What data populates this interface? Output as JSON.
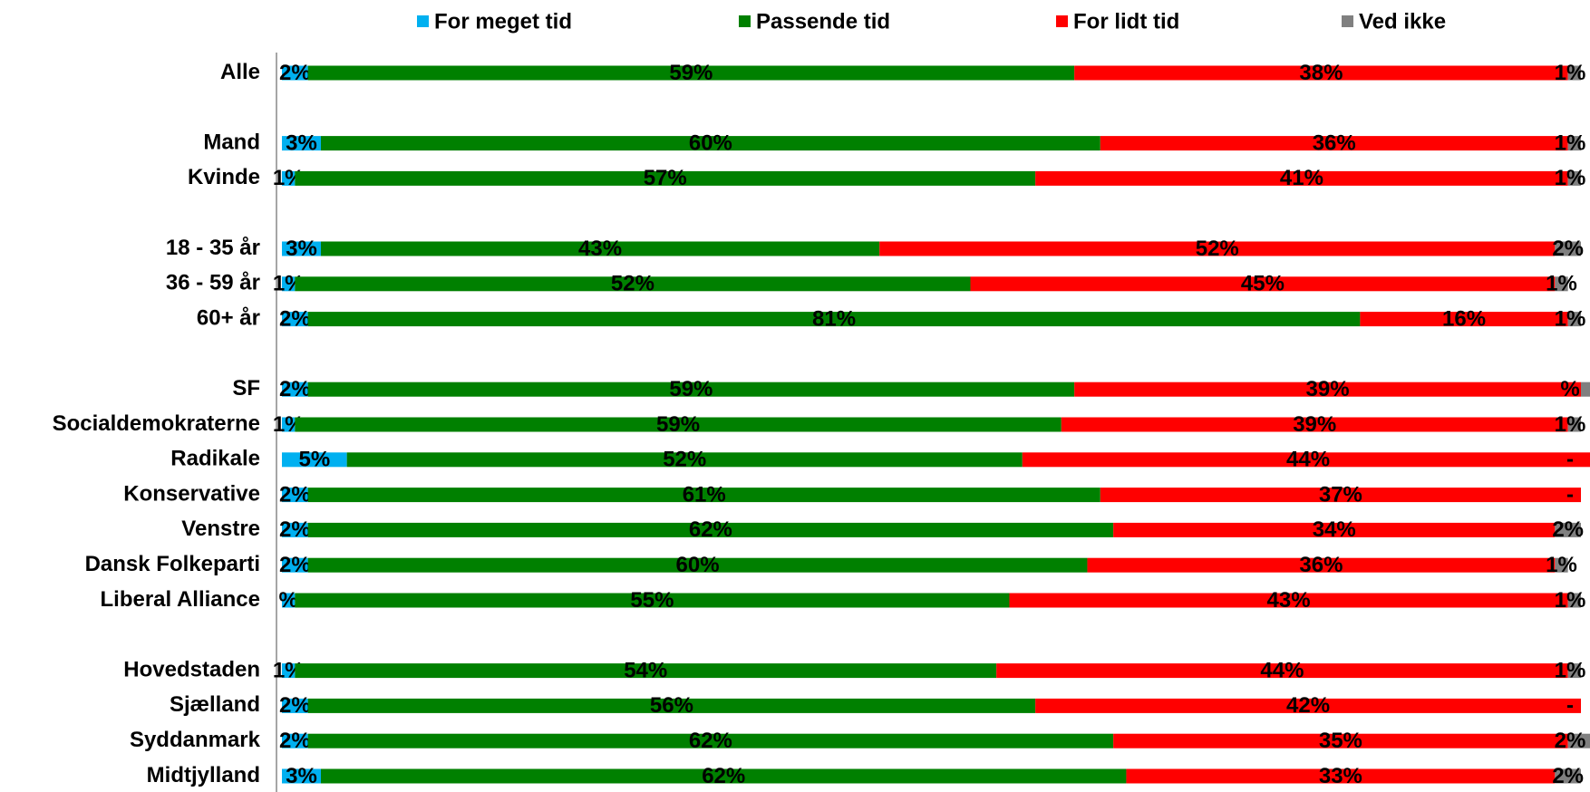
{
  "chart_data": {
    "type": "stacked-bar-horizontal",
    "categories": [
      "Alle",
      null,
      "Mand",
      "Kvinde",
      null,
      "18 - 35 år",
      "36 - 59 år",
      "60+ år",
      null,
      "SF",
      "Socialdemokraterne",
      "Radikale",
      "Konservative",
      "Venstre",
      "Dansk Folkeparti",
      "Liberal Alliance",
      null,
      "Hovedstaden",
      "Sjælland",
      "Syddanmark",
      "Midtjylland"
    ],
    "xlim": [
      0,
      100
    ],
    "legend": "top",
    "series": [
      {
        "name": "For meget tid",
        "color": "#00b0f0",
        "values": [
          2,
          null,
          3,
          1,
          null,
          3,
          1,
          2,
          null,
          2,
          1,
          5,
          2,
          2,
          2,
          1,
          null,
          1,
          2,
          2,
          3
        ],
        "value_labels": [
          "2%",
          null,
          "3%",
          "1%",
          null,
          "3%",
          "1%",
          "2%",
          null,
          "2%",
          "1%",
          "5%",
          "2%",
          "2%",
          "2%",
          "%",
          null,
          "1%",
          "2%",
          "2%",
          "3%"
        ]
      },
      {
        "name": "Passende tid",
        "color": "#008000",
        "values": [
          59,
          null,
          60,
          57,
          null,
          43,
          52,
          81,
          null,
          59,
          59,
          52,
          61,
          62,
          60,
          55,
          null,
          54,
          56,
          62,
          62
        ],
        "value_labels": [
          "59%",
          null,
          "60%",
          "57%",
          null,
          "43%",
          "52%",
          "81%",
          null,
          "59%",
          "59%",
          "52%",
          "61%",
          "62%",
          "60%",
          "55%",
          null,
          "54%",
          "56%",
          "62%",
          "62%"
        ]
      },
      {
        "name": "For lidt tid",
        "color": "#ff0000",
        "values": [
          38,
          null,
          36,
          41,
          null,
          52,
          45,
          16,
          null,
          39,
          39,
          44,
          37,
          34,
          36,
          43,
          null,
          44,
          42,
          35,
          33
        ],
        "value_labels": [
          "38%",
          null,
          "36%",
          "41%",
          null,
          "52%",
          "45%",
          "16%",
          null,
          "39%",
          "39%",
          "44%",
          "37%",
          "34%",
          "36%",
          "43%",
          null,
          "44%",
          "42%",
          "35%",
          "33%"
        ]
      },
      {
        "name": "Ved ikke",
        "color": "#808080",
        "values": [
          1,
          null,
          1,
          1,
          null,
          2,
          1,
          1,
          null,
          1,
          1,
          0,
          0,
          2,
          1,
          1,
          null,
          1,
          0,
          2,
          2
        ],
        "value_labels": [
          "1%",
          null,
          "1%",
          "1%",
          null,
          "2%",
          "1%",
          "1%",
          null,
          "%",
          "1%",
          "-",
          "-",
          "2%",
          "1%",
          "1%",
          null,
          "1%",
          "-",
          "2%",
          "2%"
        ]
      }
    ]
  }
}
